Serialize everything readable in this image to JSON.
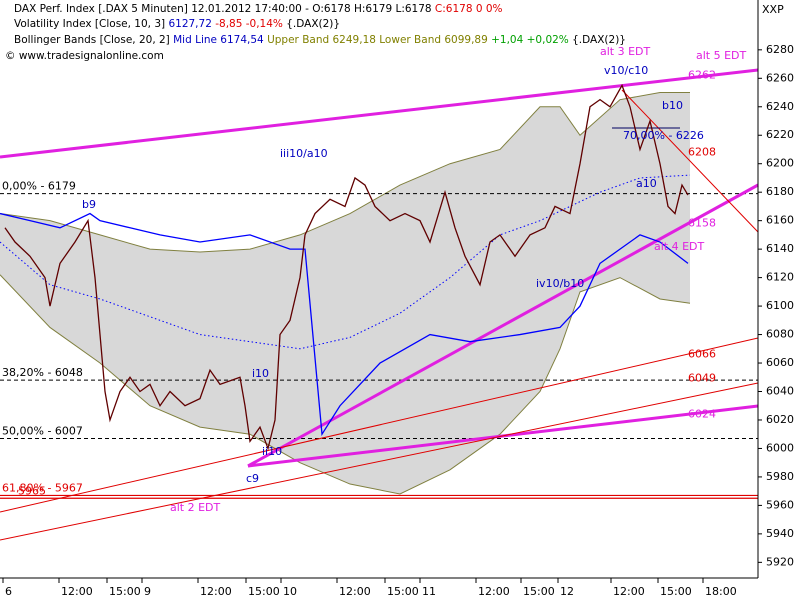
{
  "header": [
    [
      {
        "text": "DAX Perf. Index [.DAX  5 Minuten]  12.01.2012 17:40:00 - O:6178 H:6179 L:6178 ",
        "color": "#000000"
      },
      {
        "text": "C:6178 0 0%",
        "color": "#e00000"
      }
    ],
    [
      {
        "text": "Volatility Index [Close, 10, 3] ",
        "color": "#000000"
      },
      {
        "text": "6127,72 ",
        "color": "#0000c0"
      },
      {
        "text": "-8,85 -0,14% ",
        "color": "#e00000"
      },
      {
        "text": "{.DAX(2)}",
        "color": "#000000"
      }
    ],
    [
      {
        "text": "Bollinger Bands [Close, 20, 2] ",
        "color": "#000000"
      },
      {
        "text": "Mid Line 6174,54 ",
        "color": "#0000c0"
      },
      {
        "text": "Upper Band 6249,18 Lower Band 6099,89 ",
        "color": "#808000"
      },
      {
        "text": "+1,04 +0,02% ",
        "color": "#00a000"
      },
      {
        "text": "{.DAX(2)}",
        "color": "#000000"
      }
    ],
    [
      {
        "text": "© www.tradesignalonline.com",
        "color": "#000000"
      }
    ]
  ],
  "chart_data": {
    "type": "line",
    "y_axis_title": "XXP",
    "xlim": [
      0,
      758
    ],
    "ylim": [
      5909,
      6315
    ],
    "xticks": [
      {
        "value": 3,
        "label": "6"
      },
      {
        "value": 59,
        "label": "12:00"
      },
      {
        "value": 107,
        "label": "15:00"
      },
      {
        "value": 142,
        "label": "9"
      },
      {
        "value": 198,
        "label": "12:00"
      },
      {
        "value": 246,
        "label": "15:00"
      },
      {
        "value": 281,
        "label": "10"
      },
      {
        "value": 337,
        "label": "12:00"
      },
      {
        "value": 385,
        "label": "15:00"
      },
      {
        "value": 420,
        "label": "11"
      },
      {
        "value": 476,
        "label": "12:00"
      },
      {
        "value": 521,
        "label": "15:00"
      },
      {
        "value": 558,
        "label": "12"
      },
      {
        "value": 611,
        "label": "12:00"
      },
      {
        "value": 658,
        "label": "15:00"
      },
      {
        "value": 703,
        "label": "18:00"
      }
    ],
    "yticks": [
      5920,
      5940,
      5960,
      5980,
      6000,
      6020,
      6040,
      6060,
      6080,
      6100,
      6120,
      6140,
      6160,
      6180,
      6200,
      6220,
      6240,
      6260,
      6280
    ],
    "band": {
      "name": "Bollinger Bands",
      "fill": "#d8d8d8",
      "edge": "#808040",
      "x": [
        0,
        50,
        100,
        150,
        200,
        250,
        300,
        350,
        400,
        450,
        500,
        540,
        560,
        580,
        620,
        660,
        690
      ],
      "upper": [
        6165,
        6160,
        6150,
        6140,
        6138,
        6140,
        6150,
        6165,
        6185,
        6200,
        6210,
        6240,
        6240,
        6220,
        6245,
        6250,
        6250
      ],
      "lower": [
        6122,
        6085,
        6060,
        6030,
        6015,
        6010,
        5990,
        5975,
        5968,
        5985,
        6010,
        6040,
        6070,
        6110,
        6120,
        6105,
        6102
      ]
    },
    "series": [
      {
        "name": "Mid Line",
        "color": "#0000ff",
        "dash": true,
        "x": [
          0,
          50,
          100,
          200,
          300,
          350,
          400,
          450,
          500,
          540,
          600,
          640,
          690
        ],
        "values": [
          6145,
          6115,
          6105,
          6080,
          6070,
          6078,
          6095,
          6120,
          6150,
          6160,
          6180,
          6190,
          6192
        ]
      },
      {
        "name": "Volatility Index",
        "color": "#0000ff",
        "dash": false,
        "x": [
          0,
          30,
          60,
          90,
          100,
          130,
          160,
          200,
          250,
          290,
          305,
          322,
          340,
          380,
          430,
          470,
          520,
          560,
          580,
          600,
          620,
          640,
          660,
          688
        ],
        "values": [
          6165,
          6160,
          6155,
          6165,
          6160,
          6155,
          6150,
          6145,
          6150,
          6140,
          6140,
          6010,
          6030,
          6060,
          6080,
          6075,
          6080,
          6085,
          6100,
          6130,
          6140,
          6150,
          6145,
          6130
        ]
      },
      {
        "name": "DAX Perf. Index",
        "color": "#600000",
        "dash": false,
        "x": [
          5,
          15,
          30,
          45,
          50,
          60,
          75,
          88,
          95,
          100,
          105,
          110,
          120,
          130,
          140,
          150,
          160,
          170,
          185,
          200,
          210,
          220,
          240,
          245,
          250,
          260,
          268,
          275,
          280,
          290,
          300,
          305,
          315,
          330,
          345,
          355,
          365,
          375,
          390,
          405,
          420,
          430,
          445,
          455,
          465,
          480,
          490,
          500,
          515,
          530,
          545,
          555,
          570,
          580,
          590,
          600,
          610,
          622,
          630,
          640,
          650,
          660,
          668,
          675,
          682,
          688
        ],
        "values": [
          6155,
          6145,
          6135,
          6120,
          6100,
          6130,
          6145,
          6160,
          6120,
          6080,
          6040,
          6020,
          6040,
          6050,
          6040,
          6045,
          6030,
          6040,
          6030,
          6035,
          6055,
          6045,
          6050,
          6030,
          6005,
          6015,
          6000,
          6020,
          6080,
          6090,
          6120,
          6150,
          6165,
          6175,
          6170,
          6190,
          6185,
          6170,
          6160,
          6165,
          6160,
          6145,
          6180,
          6155,
          6135,
          6115,
          6145,
          6150,
          6135,
          6150,
          6155,
          6170,
          6165,
          6200,
          6240,
          6245,
          6240,
          6255,
          6240,
          6210,
          6230,
          6200,
          6170,
          6165,
          6185,
          6178
        ]
      }
    ],
    "levels": [
      {
        "value": 6179,
        "label": "0,00% - 6179",
        "color": "#000000"
      },
      {
        "value": 6048,
        "label": "38,20% - 6048",
        "color": "#000000"
      },
      {
        "value": 6007,
        "label": "50,00% - 6007",
        "color": "#000000"
      },
      {
        "value": 5967,
        "label": "61,80% - 5967",
        "color": "#e00000"
      },
      {
        "value": 5965,
        "label": "5965",
        "color": "#e00000"
      }
    ],
    "line_labels": [
      {
        "value": 6262,
        "color": "#e020e0"
      },
      {
        "value": 6208,
        "color": "#e00000"
      },
      {
        "value": 6158,
        "color": "#e020e0"
      },
      {
        "value": 6066,
        "color": "#e00000"
      },
      {
        "value": 6049,
        "color": "#e00000"
      },
      {
        "value": 6024,
        "color": "#e020e0"
      }
    ],
    "annotations": [
      {
        "text": "alt 3 EDT",
        "color": "#e020e0"
      },
      {
        "text": "alt 5 EDT",
        "color": "#e020e0"
      },
      {
        "text": "alt 4 EDT",
        "color": "#e020e0"
      },
      {
        "text": "alt 2 EDT",
        "color": "#e020e0"
      },
      {
        "text": "v10/c10",
        "color": "#0000c0"
      },
      {
        "text": "b10",
        "color": "#0000c0"
      },
      {
        "text": "70,00% - 6226",
        "color": "#0000c0"
      },
      {
        "text": "a10",
        "color": "#0000c0"
      },
      {
        "text": "iii10/a10",
        "color": "#0000c0"
      },
      {
        "text": "b9",
        "color": "#0000c0"
      },
      {
        "text": "i10",
        "color": "#0000c0"
      },
      {
        "text": "ii10",
        "color": "#0000c0"
      },
      {
        "text": "c9",
        "color": "#0000c0"
      },
      {
        "text": "iv10/b10",
        "color": "#0000c0"
      }
    ]
  }
}
